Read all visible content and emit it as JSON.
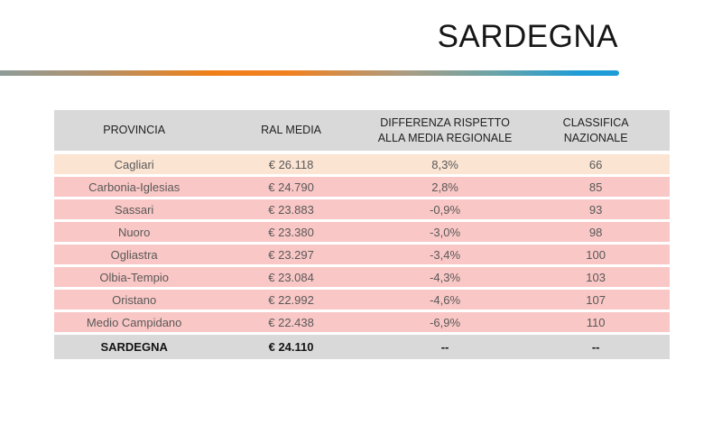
{
  "slide_title": "SARDEGNA",
  "header_display": {
    "col1": "PROVINCIA",
    "col2": "RAL MEDIA",
    "col3": "DIFFERENZA RISPETTO\nALLA MEDIA REGIONALE",
    "col4": "CLASSIFICA\nNAZIONALE"
  },
  "chart_data": {
    "type": "table",
    "title": "SARDEGNA",
    "columns": [
      "PROVINCIA",
      "RAL MEDIA",
      "DIFFERENZA RISPETTO ALLA MEDIA REGIONALE",
      "CLASSIFICA NAZIONALE"
    ],
    "rows": [
      [
        "Cagliari",
        "€ 26.118",
        "8,3%",
        "66"
      ],
      [
        "Carbonia-Iglesias",
        "€ 24.790",
        "2,8%",
        "85"
      ],
      [
        "Sassari",
        "€ 23.883",
        "-0,9%",
        "93"
      ],
      [
        "Nuoro",
        "€ 23.380",
        "-3,0%",
        "98"
      ],
      [
        "Ogliastra",
        "€ 23.297",
        "-3,4%",
        "100"
      ],
      [
        "Olbia-Tempio",
        "€ 23.084",
        "-4,3%",
        "103"
      ],
      [
        "Oristano",
        "€ 22.992",
        "-4,6%",
        "107"
      ],
      [
        "Medio Campidano",
        "€ 22.438",
        "-6,9%",
        "110"
      ]
    ],
    "footer": [
      "SARDEGNA",
      "€ 24.110",
      "--",
      "--"
    ]
  },
  "colors": {
    "header_row_bg": "#d9d9d9",
    "first_row_bg": "#fce4d3",
    "row_bg": "#f9c7c5",
    "footer_bg": "#d9d9d9",
    "row_text": "#595959",
    "header_text": "#212121",
    "title_text": "#171717",
    "gradient_stops": [
      "#8e9c97",
      "#ef8018",
      "#a89d85",
      "#1d9cd8"
    ]
  }
}
